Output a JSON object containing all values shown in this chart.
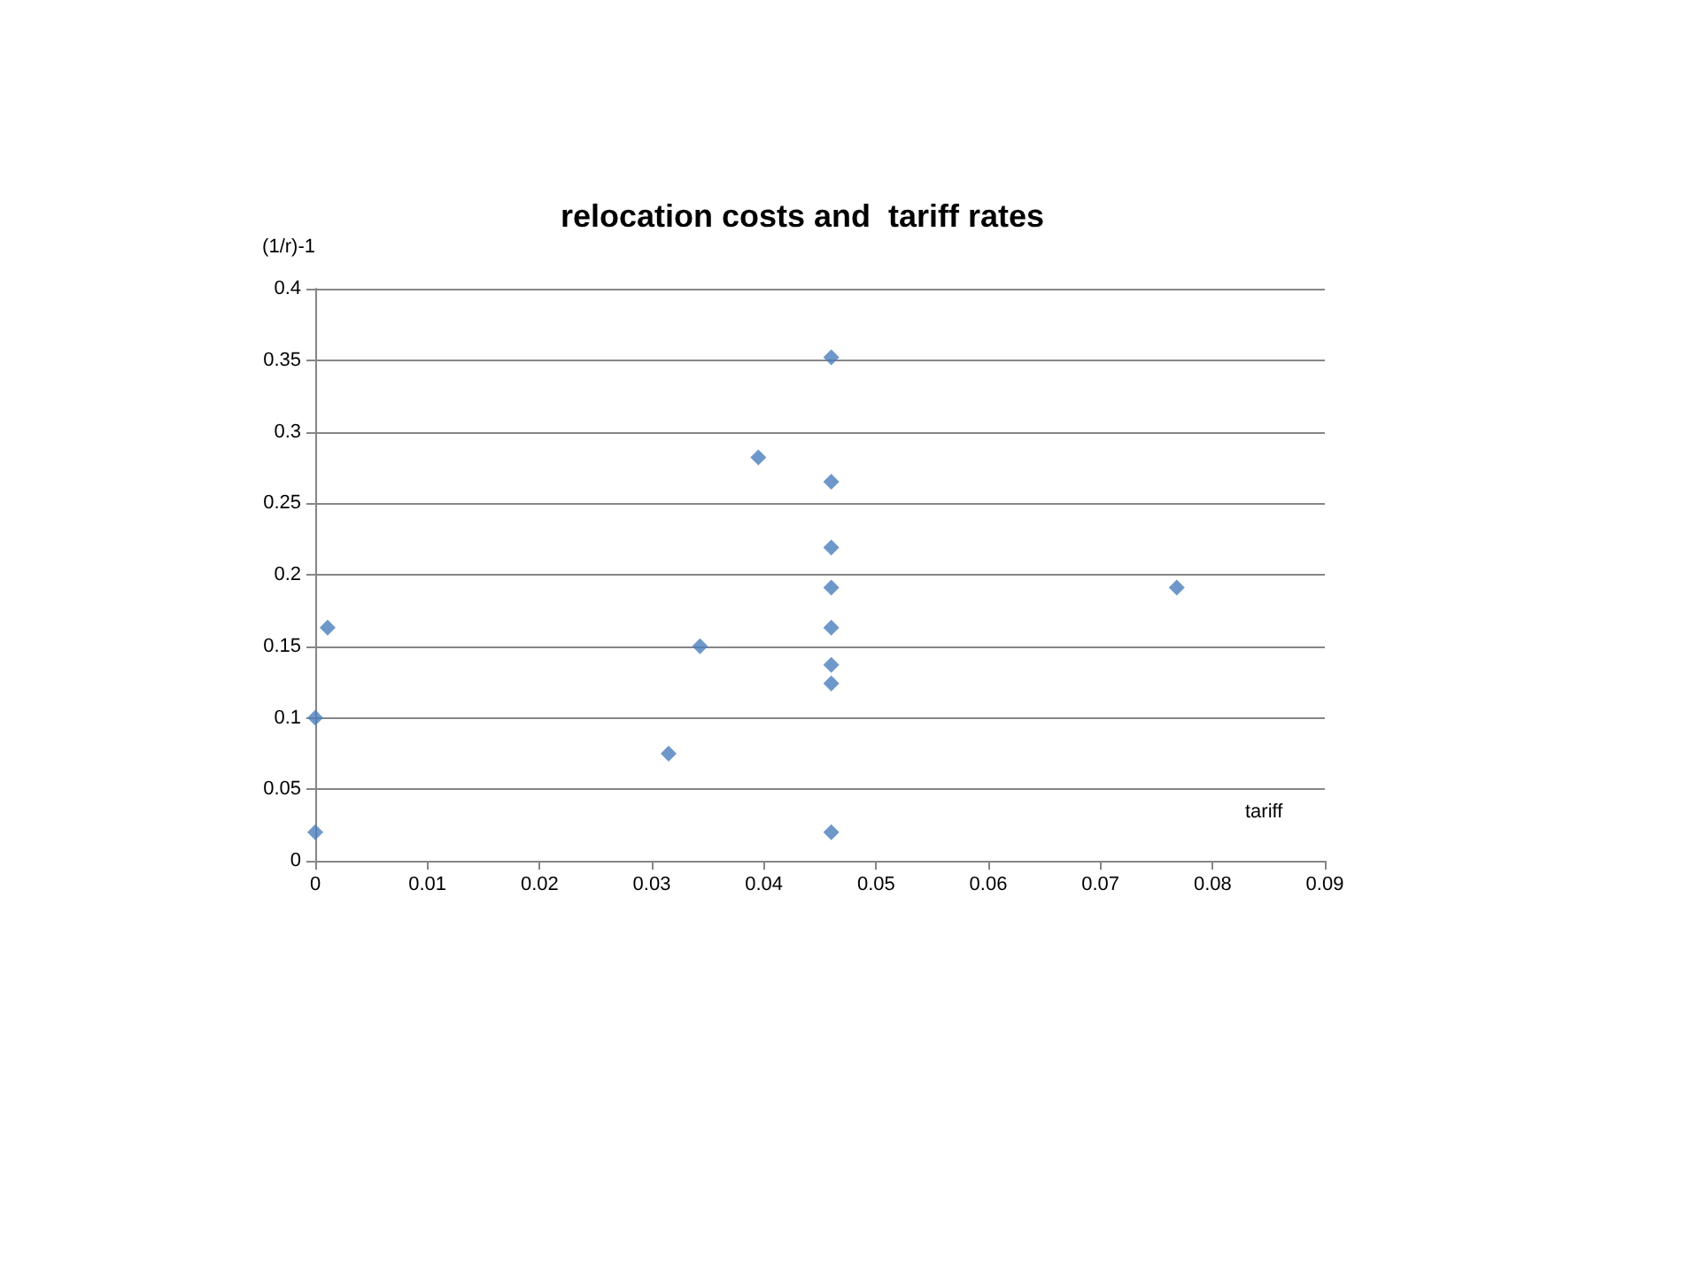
{
  "chart_data": {
    "type": "scatter",
    "title": "relocation costs and  tariff rates",
    "xlabel": "tariff",
    "ylabel": "(1/r)-1",
    "x": [
      0,
      0,
      0.0011,
      0.0315,
      0.0343,
      0.0395,
      0.046,
      0.046,
      0.046,
      0.046,
      0.046,
      0.046,
      0.046,
      0.046,
      0.0768
    ],
    "series": [
      {
        "color": "#4a7ebb",
        "values": [
          0.02,
          0.1,
          0.163,
          0.075,
          0.15,
          0.282,
          0.352,
          0.265,
          0.219,
          0.191,
          0.163,
          0.137,
          0.124,
          0.02,
          0.191
        ]
      }
    ],
    "xlim": [
      0,
      0.09
    ],
    "xticks": [
      0,
      0.01,
      0.02,
      0.03,
      0.04,
      0.05,
      0.06,
      0.07,
      0.08,
      0.09
    ],
    "ylim": [
      0,
      0.4
    ],
    "yticks": [
      0,
      0.05,
      0.1,
      0.15,
      0.2,
      0.25,
      0.3,
      0.35,
      0.4
    ],
    "grid": "y",
    "marker": "diamond"
  }
}
